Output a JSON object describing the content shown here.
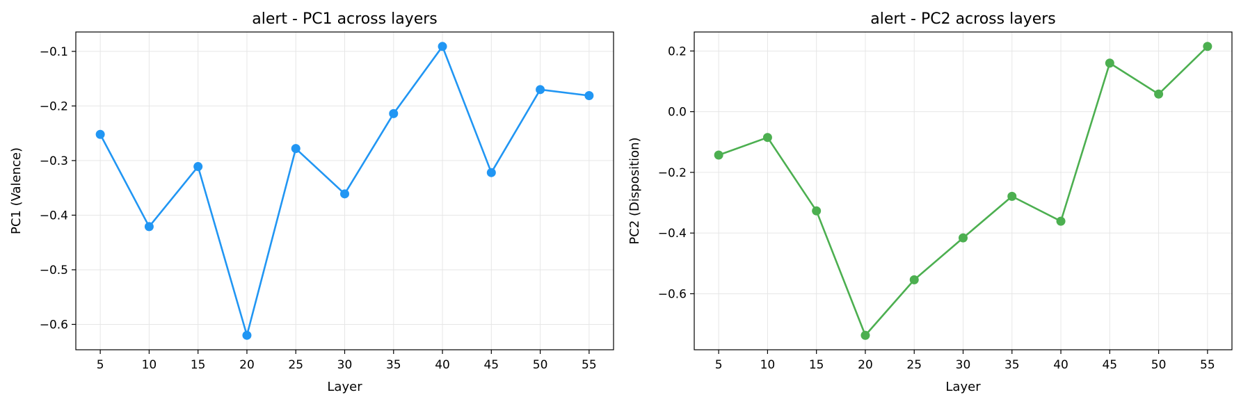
{
  "chart_data": [
    {
      "type": "line",
      "title": "alert - PC1 across layers",
      "xlabel": "Layer",
      "ylabel": "PC1 (Valence)",
      "x": [
        5,
        10,
        15,
        20,
        25,
        30,
        35,
        40,
        45,
        50,
        55
      ],
      "series": [
        {
          "values": [
            -0.252,
            -0.421,
            -0.311,
            -0.62,
            -0.278,
            -0.361,
            -0.214,
            -0.091,
            -0.322,
            -0.17,
            -0.181
          ],
          "color": "#2196f3"
        }
      ],
      "xticks": [
        5,
        10,
        15,
        20,
        25,
        30,
        35,
        40,
        45,
        50,
        55
      ],
      "yticks": [
        -0.6,
        -0.5,
        -0.4,
        -0.3,
        -0.2,
        -0.1
      ],
      "ytick_labels": [
        "−0.6",
        "−0.5",
        "−0.4",
        "−0.3",
        "−0.2",
        "−0.1"
      ],
      "xlim": [
        2.5,
        57.5
      ],
      "ylim": [
        -0.6465,
        -0.0645
      ],
      "grid": true,
      "markers": "circle"
    },
    {
      "type": "line",
      "title": "alert - PC2 across layers",
      "xlabel": "Layer",
      "ylabel": "PC2 (Disposition)",
      "x": [
        5,
        10,
        15,
        20,
        25,
        30,
        35,
        40,
        45,
        50,
        55
      ],
      "series": [
        {
          "values": [
            -0.143,
            -0.085,
            -0.327,
            -0.737,
            -0.554,
            -0.416,
            -0.279,
            -0.361,
            0.16,
            0.058,
            0.215
          ],
          "color": "#4caf50"
        }
      ],
      "xticks": [
        5,
        10,
        15,
        20,
        25,
        30,
        35,
        40,
        45,
        50,
        55
      ],
      "yticks": [
        -0.6,
        -0.4,
        -0.2,
        0.0,
        0.2
      ],
      "ytick_labels": [
        "−0.6",
        "−0.4",
        "−0.2",
        "0.0",
        "0.2"
      ],
      "xlim": [
        2.5,
        57.5
      ],
      "ylim": [
        -0.7846,
        0.2626
      ],
      "grid": true,
      "markers": "circle"
    }
  ]
}
